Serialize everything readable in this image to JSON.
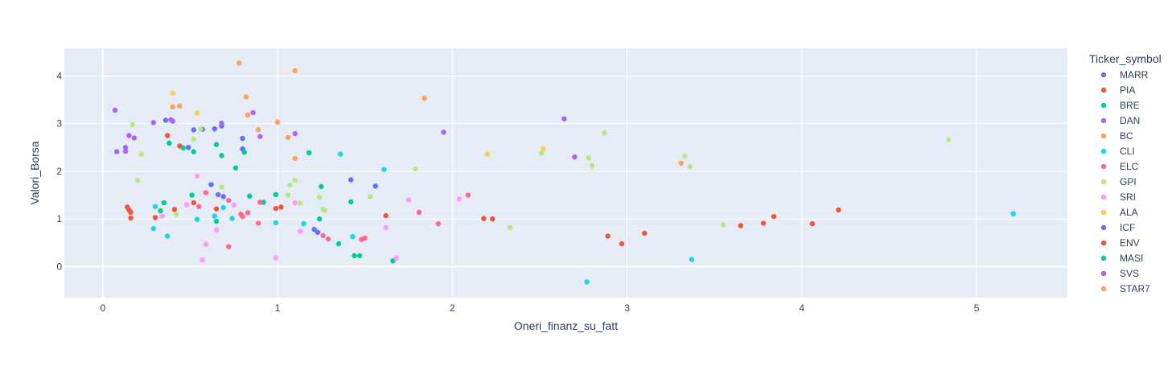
{
  "chart_data": {
    "type": "scatter",
    "xlabel": "Oneri_finanz_su_fatt",
    "ylabel": "Valori_Borsa",
    "xlim": [
      -0.22,
      5.52
    ],
    "ylim": [
      -0.65,
      4.58
    ],
    "x_ticks": [
      0,
      1,
      2,
      3,
      4,
      5
    ],
    "y_ticks": [
      0,
      1,
      2,
      3,
      4
    ],
    "grid": true,
    "legend_title": "Ticker_symbol",
    "legend_position": "right",
    "plot_background": "#e5ecf6",
    "series": [
      {
        "name": "MARR",
        "color": "#636efa",
        "points": [
          [
            0.36,
            3.07
          ],
          [
            0.52,
            2.87
          ],
          [
            0.57,
            2.88
          ],
          [
            0.64,
            2.89
          ],
          [
            0.68,
            2.95
          ],
          [
            0.62,
            1.72
          ],
          [
            0.66,
            1.51
          ],
          [
            0.69,
            1.47
          ],
          [
            0.8,
            2.69
          ],
          [
            0.8,
            2.47
          ],
          [
            1.21,
            0.78
          ],
          [
            1.23,
            0.72
          ],
          [
            1.42,
            1.82
          ],
          [
            1.56,
            1.69
          ],
          [
            0.49,
            2.5
          ]
        ]
      },
      {
        "name": "PIA",
        "color": "#ef553b",
        "points": [
          [
            0.14,
            1.25
          ],
          [
            0.15,
            1.19
          ],
          [
            0.16,
            1.14
          ],
          [
            0.16,
            1.02
          ],
          [
            0.3,
            1.03
          ],
          [
            0.37,
            2.75
          ],
          [
            0.41,
            1.2
          ],
          [
            0.44,
            2.53
          ],
          [
            0.52,
            1.34
          ],
          [
            0.65,
            1.21
          ],
          [
            0.99,
            1.22
          ],
          [
            1.02,
            1.25
          ],
          [
            1.62,
            1.07
          ],
          [
            2.18,
            1.01
          ],
          [
            2.23,
            1.0
          ],
          [
            2.89,
            0.64
          ],
          [
            2.97,
            0.48
          ],
          [
            3.1,
            0.7
          ],
          [
            3.65,
            0.86
          ],
          [
            3.78,
            0.91
          ],
          [
            3.84,
            1.05
          ],
          [
            4.06,
            0.9
          ],
          [
            4.21,
            1.19
          ]
        ]
      },
      {
        "name": "BRE",
        "color": "#00cc96",
        "points": [
          [
            0.33,
            1.17
          ],
          [
            0.38,
            2.59
          ],
          [
            0.46,
            2.49
          ],
          [
            0.52,
            2.41
          ],
          [
            0.65,
            2.56
          ],
          [
            0.68,
            2.33
          ],
          [
            0.76,
            2.07
          ],
          [
            0.81,
            2.4
          ],
          [
            0.92,
            1.35
          ],
          [
            1.18,
            2.39
          ],
          [
            1.25,
            1.68
          ],
          [
            1.35,
            0.48
          ],
          [
            1.44,
            0.23
          ],
          [
            1.47,
            0.23
          ],
          [
            1.66,
            0.12
          ]
        ]
      },
      {
        "name": "DAN",
        "color": "#ab63fa",
        "points": [
          [
            0.07,
            3.28
          ],
          [
            0.08,
            2.41
          ],
          [
            0.13,
            2.5
          ],
          [
            0.13,
            2.42
          ],
          [
            0.15,
            2.75
          ],
          [
            0.18,
            2.7
          ],
          [
            0.29,
            3.02
          ],
          [
            0.39,
            3.08
          ],
          [
            0.4,
            3.05
          ],
          [
            0.68,
            3.01
          ],
          [
            0.86,
            3.23
          ],
          [
            0.9,
            2.73
          ],
          [
            1.1,
            2.79
          ],
          [
            1.95,
            2.82
          ],
          [
            2.64,
            3.1
          ],
          [
            2.7,
            2.3
          ]
        ]
      },
      {
        "name": "BC",
        "color": "#ffa15a",
        "points": [
          [
            0.4,
            3.35
          ],
          [
            0.44,
            3.37
          ],
          [
            0.78,
            4.27
          ],
          [
            0.82,
            3.56
          ],
          [
            0.83,
            3.18
          ],
          [
            0.89,
            2.87
          ],
          [
            1.0,
            3.03
          ],
          [
            1.06,
            2.71
          ],
          [
            1.1,
            4.11
          ],
          [
            1.1,
            2.27
          ],
          [
            1.84,
            3.53
          ],
          [
            3.31,
            2.17
          ]
        ]
      },
      {
        "name": "CLI",
        "color": "#19d3f3",
        "points": [
          [
            0.29,
            0.8
          ],
          [
            0.3,
            1.26
          ],
          [
            0.37,
            0.64
          ],
          [
            0.54,
            0.99
          ],
          [
            0.64,
            1.06
          ],
          [
            0.69,
            1.24
          ],
          [
            0.74,
            1.01
          ],
          [
            0.99,
            0.92
          ],
          [
            1.15,
            0.9
          ],
          [
            1.36,
            2.36
          ],
          [
            1.43,
            0.63
          ],
          [
            1.61,
            2.04
          ],
          [
            2.77,
            -0.32
          ],
          [
            3.37,
            0.15
          ],
          [
            5.21,
            1.11
          ]
        ]
      },
      {
        "name": "ELC",
        "color": "#ff6692",
        "points": [
          [
            0.55,
            1.26
          ],
          [
            0.59,
            1.55
          ],
          [
            0.72,
            1.39
          ],
          [
            0.72,
            0.42
          ],
          [
            0.79,
            1.1
          ],
          [
            0.8,
            1.05
          ],
          [
            0.83,
            1.13
          ],
          [
            0.89,
            0.91
          ],
          [
            0.9,
            1.35
          ],
          [
            1.26,
            0.65
          ],
          [
            1.29,
            0.58
          ],
          [
            1.48,
            0.57
          ],
          [
            1.5,
            0.6
          ],
          [
            1.81,
            1.14
          ],
          [
            1.92,
            0.9
          ],
          [
            2.09,
            1.5
          ]
        ]
      },
      {
        "name": "GPI",
        "color": "#b6e880",
        "points": [
          [
            0.17,
            2.98
          ],
          [
            0.2,
            1.81
          ],
          [
            0.22,
            2.36
          ],
          [
            0.42,
            1.1
          ],
          [
            0.52,
            2.67
          ],
          [
            0.56,
            2.88
          ],
          [
            0.68,
            1.67
          ],
          [
            1.06,
            1.5
          ],
          [
            1.07,
            1.71
          ],
          [
            1.1,
            1.81
          ],
          [
            1.13,
            1.33
          ],
          [
            1.24,
            1.46
          ],
          [
            1.26,
            1.2
          ],
          [
            1.27,
            1.18
          ],
          [
            1.53,
            1.47
          ],
          [
            1.79,
            2.05
          ],
          [
            2.33,
            0.82
          ],
          [
            2.51,
            2.38
          ],
          [
            2.78,
            2.28
          ],
          [
            2.8,
            2.12
          ],
          [
            2.87,
            2.8
          ],
          [
            3.33,
            2.32
          ],
          [
            3.36,
            2.1
          ],
          [
            3.55,
            0.88
          ],
          [
            4.84,
            2.66
          ]
        ]
      },
      {
        "name": "SRI",
        "color": "#ff97ff",
        "points": [
          [
            0.34,
            1.06
          ],
          [
            0.48,
            1.3
          ],
          [
            0.54,
            1.9
          ],
          [
            0.57,
            0.14
          ],
          [
            0.59,
            0.47
          ],
          [
            0.65,
            0.77
          ],
          [
            0.75,
            1.29
          ],
          [
            0.99,
            0.18
          ],
          [
            1.1,
            1.34
          ],
          [
            1.13,
            0.74
          ],
          [
            1.62,
            0.82
          ],
          [
            1.68,
            0.18
          ],
          [
            1.75,
            1.4
          ],
          [
            2.04,
            1.42
          ]
        ]
      },
      {
        "name": "ALA",
        "color": "#fecb52",
        "points": [
          [
            0.4,
            3.64
          ],
          [
            0.54,
            3.22
          ],
          [
            2.2,
            2.36
          ],
          [
            2.52,
            2.47
          ]
        ]
      },
      {
        "name": "ICF",
        "color": "#636efa",
        "points": []
      },
      {
        "name": "ENV",
        "color": "#ef553b",
        "points": []
      },
      {
        "name": "MASI",
        "color": "#00cc96",
        "points": [
          [
            0.35,
            1.34
          ],
          [
            0.51,
            1.5
          ],
          [
            0.65,
            0.95
          ],
          [
            0.84,
            1.48
          ],
          [
            0.99,
            1.51
          ],
          [
            1.24,
            1.0
          ],
          [
            1.42,
            1.36
          ]
        ]
      },
      {
        "name": "SVS",
        "color": "#ab63fa",
        "points": []
      },
      {
        "name": "STAR7",
        "color": "#ffa15a",
        "points": []
      }
    ]
  }
}
